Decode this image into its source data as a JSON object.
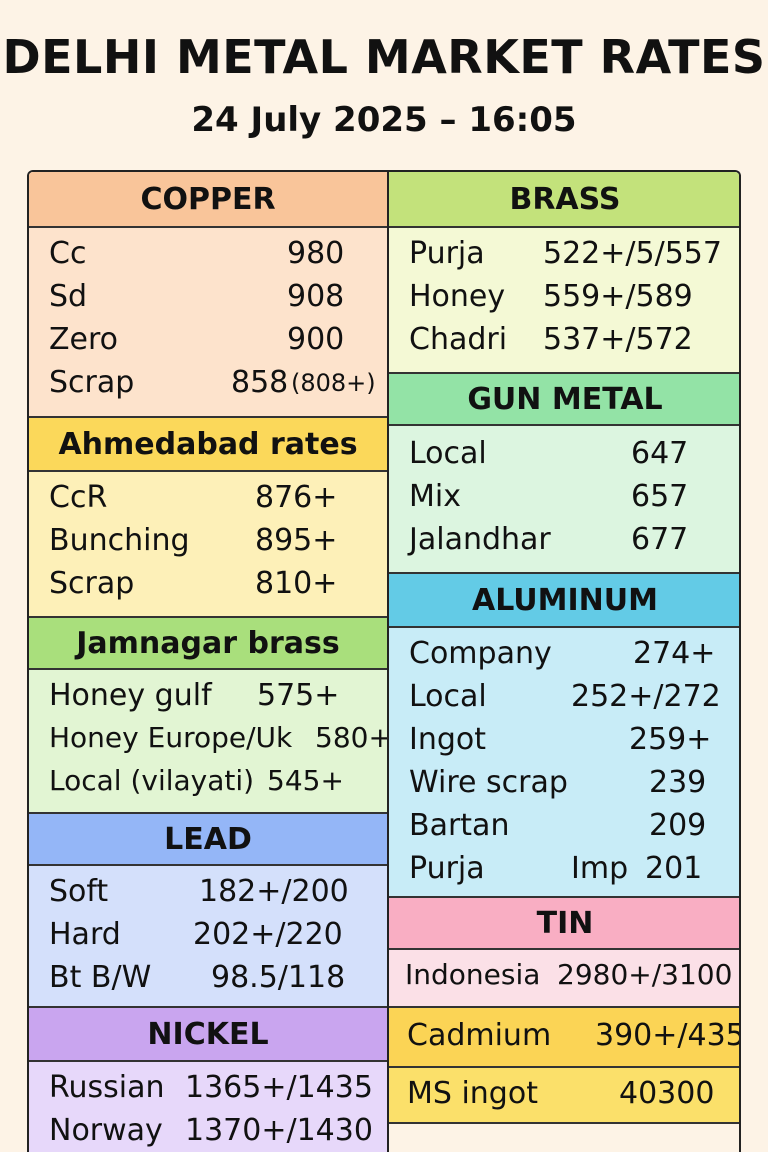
{
  "header": {
    "title": "DELHI METAL MARKET RATES",
    "subtitle": "24 July 2025 – 16:05"
  },
  "colors": {
    "copper": "#f9c59a",
    "copper_body": "#fde3cc",
    "ahmedabad": "#fbd85a",
    "ahmedabad_body": "#fdf0b8",
    "jamnagar": "#a9df7c",
    "jamnagar_body": "#e2f5d3",
    "lead": "#94b6f7",
    "lead_body": "#d4e0fb",
    "nickel": "#c9a5ef",
    "nickel_body": "#e7d8fa",
    "brass": "#c3e27b",
    "brass_body": "#f4f9d5",
    "gunmetal": "#93e3a6",
    "gunmetal_body": "#dcf5e0",
    "aluminum": "#63cbe6",
    "aluminum_body": "#c8ecf7",
    "tin": "#f9aec3",
    "tin_body": "#fbe0e7",
    "cadmium": "#fbd455",
    "msingot": "#fbe06a"
  },
  "copper": {
    "title": "COPPER",
    "rows": [
      {
        "name": "Cc",
        "value": "980"
      },
      {
        "name": "Sd",
        "value": "908"
      },
      {
        "name": "Zero",
        "value": "900"
      },
      {
        "name": "Scrap",
        "value": "858",
        "note": "(808+)"
      }
    ]
  },
  "ahmedabad": {
    "title": "Ahmedabad rates",
    "rows": [
      {
        "name": "CcR",
        "value": "876+"
      },
      {
        "name": "Bunching",
        "value": "895+"
      },
      {
        "name": "Scrap",
        "value": "810+"
      }
    ]
  },
  "jamnagar": {
    "title": "Jamnagar brass",
    "rows": [
      {
        "name": "Honey gulf",
        "value": "575+"
      },
      {
        "name": "Honey Europe/Uk",
        "value": "580+"
      },
      {
        "name": "Local (vilayati)",
        "value": "545+"
      }
    ]
  },
  "lead": {
    "title": "LEAD",
    "rows": [
      {
        "name": "Soft",
        "value": "182+/200"
      },
      {
        "name": "Hard",
        "value": "202+/220"
      },
      {
        "name": "Bt B/W",
        "value": "98.5/118"
      }
    ]
  },
  "nickel": {
    "title": "NICKEL",
    "rows": [
      {
        "name": "Russian",
        "value": "1365+/1435"
      },
      {
        "name": "Norway",
        "value": "1370+/1430"
      }
    ]
  },
  "brass": {
    "title": "BRASS",
    "rows": [
      {
        "name": "Purja",
        "value": "522+/5/557"
      },
      {
        "name": "Honey",
        "value": "559+/589"
      },
      {
        "name": "Chadri",
        "value": "537+/572"
      }
    ]
  },
  "gunmetal": {
    "title": "GUN METAL",
    "rows": [
      {
        "name": "Local",
        "value": "647"
      },
      {
        "name": "Mix",
        "value": "657"
      },
      {
        "name": "Jalandhar",
        "value": "677"
      }
    ]
  },
  "aluminum": {
    "title": "ALUMINUM",
    "rows": [
      {
        "name": "Company",
        "value": "274+"
      },
      {
        "name": "Local",
        "value": "252+/272"
      },
      {
        "name": "Ingot",
        "value": "259+"
      },
      {
        "name": "Wire scrap",
        "value": "239"
      },
      {
        "name": "Bartan",
        "value": "209"
      },
      {
        "name": "Purja",
        "note": "Imp",
        "value": "201"
      }
    ]
  },
  "tin": {
    "title": "TIN",
    "rows": [
      {
        "name": "Indonesia",
        "value": "2980+/3100"
      }
    ]
  },
  "cadmium": {
    "name": "Cadmium",
    "value": "390+/435"
  },
  "msingot": {
    "name": "MS ingot",
    "value": "40300"
  }
}
